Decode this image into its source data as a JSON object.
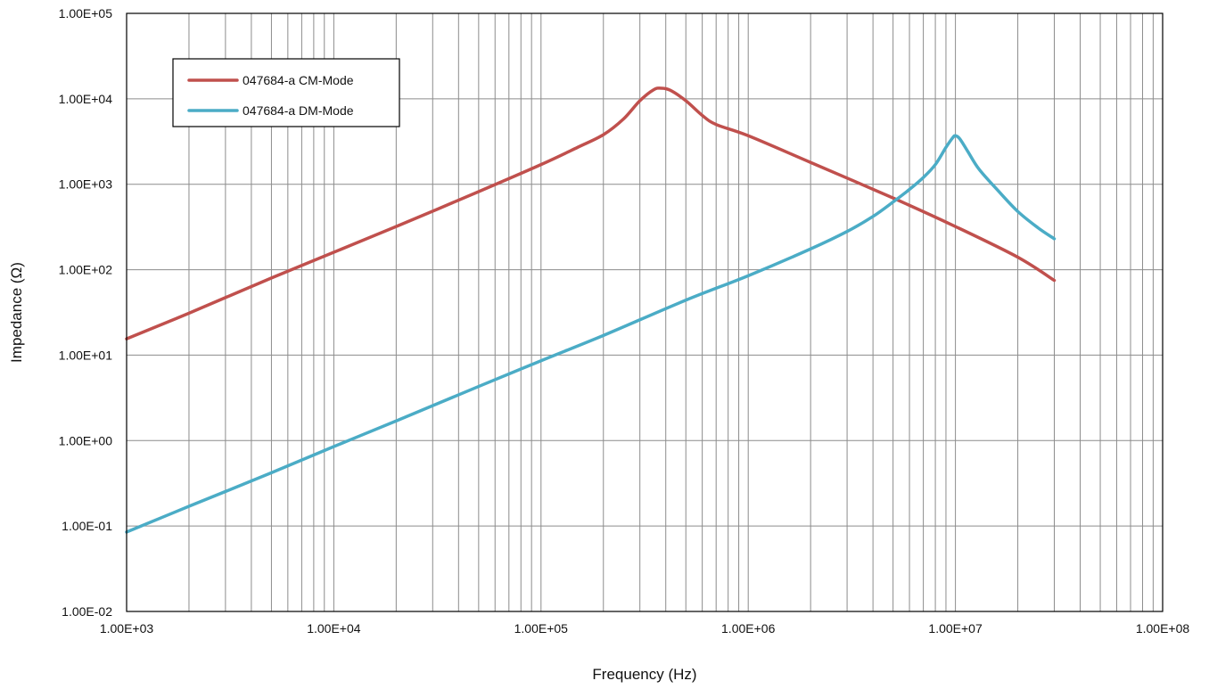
{
  "chart_data": {
    "type": "line",
    "xlabel": "Frequency (Hz)",
    "ylabel": "Impedance (Ω)",
    "x_scale": "log",
    "y_scale": "log",
    "xlim": [
      1000,
      100000000
    ],
    "ylim": [
      0.01,
      100000
    ],
    "grid": true,
    "legend_position": "top-left",
    "x_tick_labels": [
      "1.00E+03",
      "1.00E+04",
      "1.00E+05",
      "1.00E+06",
      "1.00E+07",
      "1.00E+08"
    ],
    "y_tick_labels": [
      "1.00E-02",
      "1.00E-01",
      "1.00E+00",
      "1.00E+01",
      "1.00E+02",
      "1.00E+03",
      "1.00E+04",
      "1.00E+05"
    ],
    "series": [
      {
        "name": "047684-a CM-Mode",
        "color": "#c0504d",
        "x": [
          1000,
          2000,
          5000,
          10000,
          20000,
          50000,
          100000,
          150000,
          200000,
          250000,
          300000,
          350000,
          380000,
          420000,
          500000,
          600000,
          700000,
          1000000,
          2000000,
          5000000,
          10000000,
          20000000,
          30000000
        ],
        "y": [
          15.5,
          31,
          80,
          160,
          320,
          820,
          1700,
          2700,
          3800,
          5800,
          9500,
          12800,
          13300,
          12600,
          9500,
          6400,
          5000,
          3700,
          1800,
          690,
          320,
          140,
          75
        ]
      },
      {
        "name": "047684-a DM-Mode",
        "color": "#4bacc6",
        "x": [
          1000,
          2000,
          5000,
          10000,
          20000,
          50000,
          100000,
          200000,
          500000,
          1000000,
          2000000,
          3000000,
          4000000,
          5000000,
          6000000,
          7000000,
          8000000,
          9000000,
          9700000,
          10000000,
          10500000,
          11500000,
          13000000,
          16000000,
          20000000,
          25000000,
          30000000
        ],
        "y": [
          0.085,
          0.17,
          0.42,
          0.85,
          1.7,
          4.3,
          8.6,
          17,
          44,
          85,
          175,
          280,
          420,
          620,
          870,
          1200,
          1700,
          2700,
          3500,
          3700,
          3400,
          2400,
          1500,
          850,
          480,
          310,
          230
        ]
      }
    ]
  }
}
